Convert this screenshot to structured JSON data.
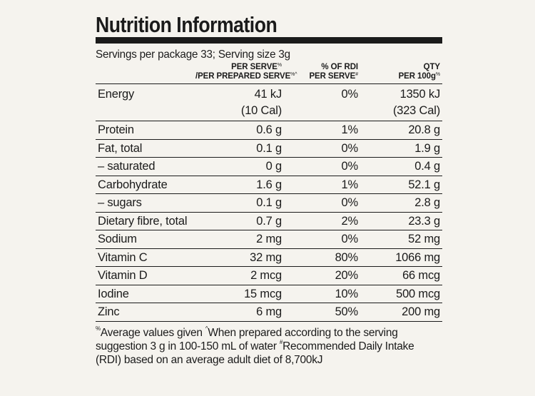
{
  "title": "Nutrition Information",
  "servings": "Servings per package 33; Serving size 3g",
  "headers": {
    "per_serve_l1": "PER SERVE",
    "per_serve_l1_mark": "%",
    "per_serve_l2": "/PER PREPARED SERVE",
    "per_serve_l2_mark": "%^",
    "rdi_l1": "% OF RDI",
    "rdi_l2": "PER SERVE",
    "rdi_l2_mark": "#",
    "qty_l1": "QTY",
    "qty_l2": "PER 100g",
    "qty_l2_mark": "%"
  },
  "energy": {
    "label": "Energy",
    "serve_kj": "41 kJ",
    "serve_cal": "(10 Cal)",
    "rdi": "0%",
    "per100_kj": "1350 kJ",
    "per100_cal": "(323 Cal)"
  },
  "rows": [
    {
      "label": "Protein",
      "serve": "0.6 g",
      "rdi": "1%",
      "per100": "20.8 g"
    },
    {
      "label": "Fat, total",
      "serve": "0.1 g",
      "rdi": "0%",
      "per100": "1.9 g"
    },
    {
      "label": "– saturated",
      "serve": "0 g",
      "rdi": "0%",
      "per100": "0.4 g"
    },
    {
      "label": "Carbohydrate",
      "serve": "1.6 g",
      "rdi": "1%",
      "per100": "52.1 g"
    },
    {
      "label": "– sugars",
      "serve": "0.1 g",
      "rdi": "0%",
      "per100": "2.8 g"
    },
    {
      "label": "Dietary fibre, total",
      "serve": "0.7 g",
      "rdi": "2%",
      "per100": "23.3 g"
    },
    {
      "label": "Sodium",
      "serve": "2 mg",
      "rdi": "0%",
      "per100": "52 mg"
    },
    {
      "label": "Vitamin C",
      "serve": "32 mg",
      "rdi": "80%",
      "per100": "1066 mg"
    },
    {
      "label": "Vitamin D",
      "serve": "2 mcg",
      "rdi": "20%",
      "per100": "66 mcg"
    },
    {
      "label": "Iodine",
      "serve": "15 mcg",
      "rdi": "10%",
      "per100": "500 mcg"
    },
    {
      "label": "Zinc",
      "serve": "6 mg",
      "rdi": "50%",
      "per100": "200 mg"
    }
  ],
  "footnote": {
    "mark1": "%",
    "text1": "Average values given ",
    "mark2": "^",
    "text2": "When prepared according to the serving suggestion 3 g in 100-150 mL of water ",
    "mark3": "#",
    "text3": "Recommended Daily Intake (RDI) based on an average adult diet of 8,700kJ"
  }
}
